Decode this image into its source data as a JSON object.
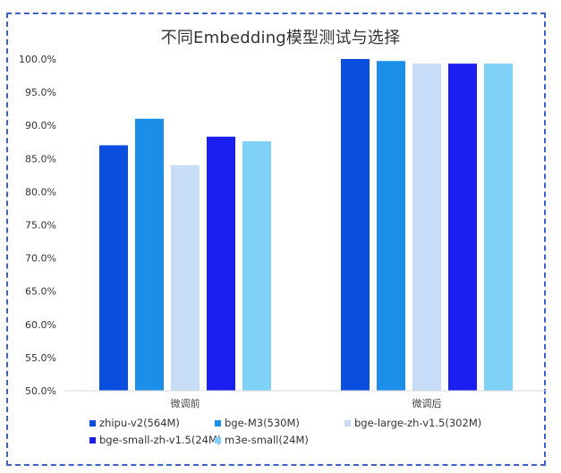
{
  "chart_data": {
    "type": "bar",
    "title": "不同Embedding模型测试与选择",
    "xlabel": "",
    "ylabel": "",
    "categories": [
      "微调前",
      "微调后"
    ],
    "series": [
      {
        "name": "zhipu-v2(564M)",
        "color": "#0a4ee0",
        "values": [
          87.0,
          100.0
        ]
      },
      {
        "name": "bge-M3(530M)",
        "color": "#1a8ee8",
        "values": [
          91.0,
          99.7
        ]
      },
      {
        "name": "bge-large-zh-v1.5(302M)",
        "color": "#c6dcf7",
        "values": [
          84.0,
          99.3
        ]
      },
      {
        "name": "bge-small-zh-v1.5(24M)",
        "color": "#1a1ff0",
        "values": [
          88.3,
          99.3
        ]
      },
      {
        "name": "m3e-small(24M)",
        "color": "#7fd1f7",
        "values": [
          87.6,
          99.3
        ]
      }
    ],
    "ylim": [
      50,
      100
    ],
    "yticks": [
      "50.0%",
      "55.0%",
      "60.0%",
      "65.0%",
      "70.0%",
      "75.0%",
      "80.0%",
      "85.0%",
      "90.0%",
      "95.0%",
      "100.0%"
    ],
    "grid": false,
    "legend_position": "bottom"
  }
}
